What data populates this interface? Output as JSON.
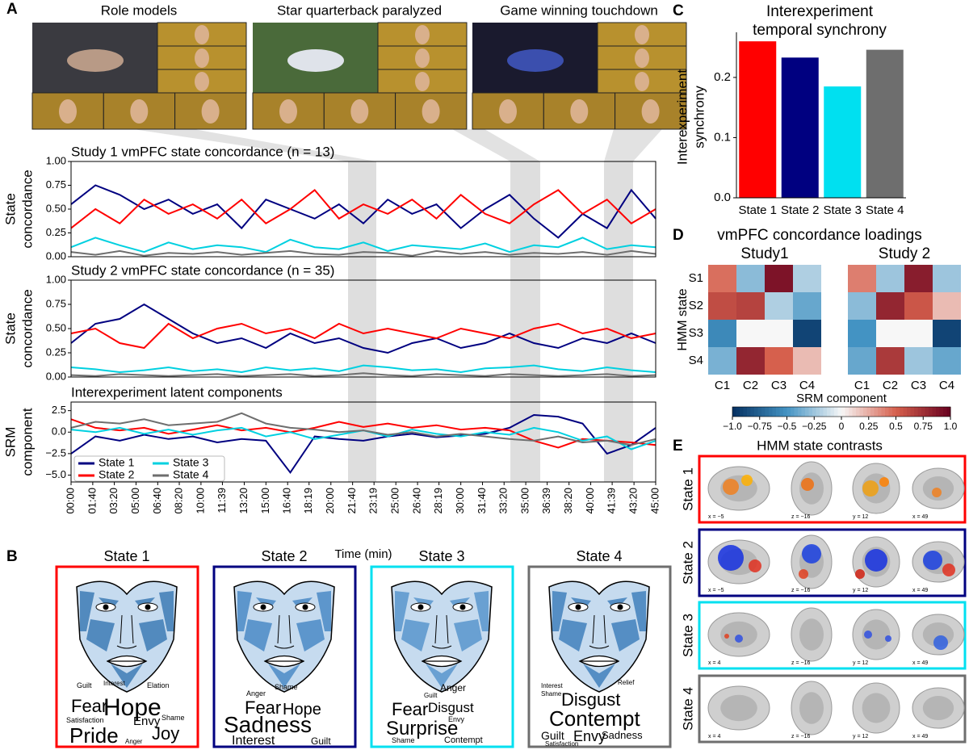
{
  "panel_labels": [
    "A",
    "B",
    "C",
    "D",
    "E"
  ],
  "videos": [
    "Role models",
    "Star quarterback paralyzed",
    "Game winning touchdown"
  ],
  "chart_data": [
    {
      "type": "line",
      "title": "Study 1 vmPFC state concordance (n = 13)",
      "ylabel": [
        "State",
        "concordance"
      ],
      "x": [
        0,
        1.875,
        3.75,
        5.625,
        7.5,
        9.375,
        11.25,
        13.125,
        15,
        16.875,
        18.75,
        20.625,
        22.5,
        24.375,
        26.25,
        28.125,
        30,
        31.875,
        33.75,
        35.625,
        37.5,
        39.375,
        41.25,
        43.125,
        45
      ],
      "xlim": [
        0,
        45
      ],
      "ylim": [
        0,
        1
      ],
      "yticks": [
        {
          "value": 0,
          "label": "0.00"
        },
        {
          "value": 0.25,
          "label": "0.25"
        },
        {
          "value": 0.5,
          "label": "0.50"
        },
        {
          "value": 0.75,
          "label": "0.75"
        },
        {
          "value": 1,
          "label": "1.00"
        }
      ],
      "series": [
        {
          "color": "#000080",
          "values": [
            0.55,
            0.75,
            0.65,
            0.5,
            0.6,
            0.45,
            0.55,
            0.3,
            0.6,
            0.5,
            0.4,
            0.55,
            0.35,
            0.6,
            0.45,
            0.55,
            0.3,
            0.5,
            0.65,
            0.4,
            0.2,
            0.45,
            0.3,
            0.7,
            0.4
          ]
        },
        {
          "color": "#ff0000",
          "values": [
            0.3,
            0.5,
            0.35,
            0.6,
            0.45,
            0.55,
            0.4,
            0.6,
            0.35,
            0.5,
            0.7,
            0.4,
            0.55,
            0.45,
            0.6,
            0.4,
            0.65,
            0.45,
            0.35,
            0.55,
            0.7,
            0.45,
            0.6,
            0.35,
            0.5
          ]
        },
        {
          "color": "#00d0e0",
          "values": [
            0.1,
            0.2,
            0.12,
            0.05,
            0.15,
            0.08,
            0.12,
            0.1,
            0.05,
            0.18,
            0.1,
            0.08,
            0.15,
            0.06,
            0.12,
            0.1,
            0.08,
            0.14,
            0.05,
            0.12,
            0.1,
            0.2,
            0.08,
            0.12,
            0.1
          ]
        },
        {
          "color": "#6e6e6e",
          "values": [
            0.05,
            0.02,
            0.06,
            0.01,
            0.04,
            0.03,
            0.05,
            0.02,
            0.04,
            0.06,
            0.03,
            0.02,
            0.05,
            0.04,
            0.01,
            0.06,
            0.03,
            0.05,
            0.02,
            0.04,
            0.03,
            0.05,
            0.02,
            0.06,
            0.03
          ]
        }
      ]
    },
    {
      "type": "line",
      "title": "Study 2 vmPFC state concordance (n = 35)",
      "ylabel": [
        "State",
        "concordance"
      ],
      "x": [
        0,
        1.875,
        3.75,
        5.625,
        7.5,
        9.375,
        11.25,
        13.125,
        15,
        16.875,
        18.75,
        20.625,
        22.5,
        24.375,
        26.25,
        28.125,
        30,
        31.875,
        33.75,
        35.625,
        37.5,
        39.375,
        41.25,
        43.125,
        45
      ],
      "xlim": [
        0,
        45
      ],
      "ylim": [
        0,
        1
      ],
      "yticks": [
        {
          "value": 0,
          "label": "0.00"
        },
        {
          "value": 0.25,
          "label": "0.25"
        },
        {
          "value": 0.5,
          "label": "0.50"
        },
        {
          "value": 0.75,
          "label": "0.75"
        },
        {
          "value": 1,
          "label": "1.00"
        }
      ],
      "series": [
        {
          "color": "#000080",
          "values": [
            0.35,
            0.55,
            0.6,
            0.75,
            0.6,
            0.45,
            0.35,
            0.4,
            0.3,
            0.45,
            0.35,
            0.4,
            0.3,
            0.25,
            0.35,
            0.4,
            0.3,
            0.35,
            0.45,
            0.35,
            0.3,
            0.4,
            0.35,
            0.45,
            0.35
          ]
        },
        {
          "color": "#ff0000",
          "values": [
            0.45,
            0.5,
            0.35,
            0.3,
            0.55,
            0.4,
            0.5,
            0.55,
            0.45,
            0.5,
            0.4,
            0.55,
            0.45,
            0.5,
            0.45,
            0.4,
            0.5,
            0.45,
            0.4,
            0.5,
            0.55,
            0.45,
            0.5,
            0.4,
            0.45
          ]
        },
        {
          "color": "#00d0e0",
          "values": [
            0.1,
            0.08,
            0.05,
            0.07,
            0.1,
            0.06,
            0.08,
            0.05,
            0.1,
            0.07,
            0.09,
            0.06,
            0.12,
            0.1,
            0.07,
            0.08,
            0.05,
            0.09,
            0.1,
            0.12,
            0.08,
            0.06,
            0.1,
            0.07,
            0.05
          ]
        },
        {
          "color": "#6e6e6e",
          "values": [
            0.02,
            0.01,
            0.03,
            0.02,
            0.01,
            0.02,
            0.03,
            0.01,
            0.02,
            0.03,
            0.01,
            0.02,
            0.04,
            0.02,
            0.01,
            0.03,
            0.02,
            0.01,
            0.03,
            0.02,
            0.01,
            0.02,
            0.03,
            0.01,
            0.02
          ]
        }
      ]
    },
    {
      "type": "line",
      "title": "Interexperiment latent components",
      "ylabel": [
        "SRM",
        "component"
      ],
      "xlabel": "Time (min)",
      "legend": "lower left",
      "x": [
        0,
        1.875,
        3.75,
        5.625,
        7.5,
        9.375,
        11.25,
        13.125,
        15,
        16.875,
        18.75,
        20.625,
        22.5,
        24.375,
        26.25,
        28.125,
        30,
        31.875,
        33.75,
        35.625,
        37.5,
        39.375,
        41.25,
        43.125,
        45
      ],
      "xlim": [
        0,
        45
      ],
      "ylim": [
        -5.8,
        3.5
      ],
      "xticks": [
        {
          "value": 0,
          "label": "00:00"
        },
        {
          "value": 1.67,
          "label": "01:40"
        },
        {
          "value": 3.33,
          "label": "03:20"
        },
        {
          "value": 5,
          "label": "05:00"
        },
        {
          "value": 6.67,
          "label": "06:40"
        },
        {
          "value": 8.33,
          "label": "08:20"
        },
        {
          "value": 10,
          "label": "10:00"
        },
        {
          "value": 11.65,
          "label": "11:39"
        },
        {
          "value": 13.33,
          "label": "13:20"
        },
        {
          "value": 15,
          "label": "15:00"
        },
        {
          "value": 16.67,
          "label": "16:40"
        },
        {
          "value": 18.32,
          "label": "18:19"
        },
        {
          "value": 20,
          "label": "20:00"
        },
        {
          "value": 21.67,
          "label": "21:40"
        },
        {
          "value": 23.32,
          "label": "23:19"
        },
        {
          "value": 25,
          "label": "25:00"
        },
        {
          "value": 26.67,
          "label": "26:40"
        },
        {
          "value": 28.32,
          "label": "28:19"
        },
        {
          "value": 30,
          "label": "30:00"
        },
        {
          "value": 31.67,
          "label": "31:40"
        },
        {
          "value": 33.33,
          "label": "33:20"
        },
        {
          "value": 35,
          "label": "35:00"
        },
        {
          "value": 36.65,
          "label": "36:39"
        },
        {
          "value": 38.33,
          "label": "38:20"
        },
        {
          "value": 40,
          "label": "40:00"
        },
        {
          "value": 41.65,
          "label": "41:39"
        },
        {
          "value": 43.33,
          "label": "43:20"
        },
        {
          "value": 45,
          "label": "45:00"
        }
      ],
      "yticks": [
        {
          "value": -5,
          "label": "−5.0"
        },
        {
          "value": -2.5,
          "label": "−2.5"
        },
        {
          "value": 0,
          "label": "0.0"
        },
        2.5
      ],
      "series": [
        {
          "name": "State 1",
          "color": "#000080",
          "values": [
            -2.5,
            -0.5,
            -1.0,
            -0.3,
            -0.8,
            -0.5,
            -1.2,
            -0.8,
            -1.0,
            -4.7,
            -0.5,
            -0.8,
            -1.0,
            -0.5,
            -0.2,
            -0.6,
            -0.4,
            -0.2,
            0.5,
            2.0,
            1.8,
            1.0,
            -2.5,
            -1.5,
            0.5
          ]
        },
        {
          "name": "State 2",
          "color": "#ff0000",
          "values": [
            1.5,
            0.5,
            0.2,
            0.5,
            -0.2,
            0.3,
            0.8,
            0.2,
            0.5,
            0.0,
            0.5,
            1.2,
            0.6,
            1.0,
            0.5,
            0.8,
            0.3,
            0.5,
            0.2,
            -1.0,
            -1.8,
            -0.8,
            -1.0,
            -1.2,
            -1.5
          ]
        },
        {
          "name": "State 3",
          "color": "#00d0e0",
          "values": [
            0.3,
            0.0,
            0.5,
            -0.2,
            0.3,
            -0.3,
            0.2,
            0.5,
            -0.5,
            0.0,
            -0.8,
            -0.3,
            0.2,
            -0.5,
            0.3,
            -0.2,
            -0.5,
            0.0,
            -0.3,
            0.5,
            0.0,
            -1.0,
            -0.5,
            -2.0,
            -1.0
          ]
        },
        {
          "name": "State 4",
          "color": "#6e6e6e",
          "values": [
            0.5,
            1.2,
            1.0,
            1.5,
            0.8,
            1.0,
            1.2,
            2.2,
            1.0,
            0.5,
            0.3,
            0.0,
            0.2,
            -0.3,
            0.0,
            -0.5,
            -0.2,
            -0.5,
            -0.8,
            -1.0,
            -0.5,
            -1.2,
            -1.0,
            -1.5,
            -0.8
          ]
        }
      ]
    },
    {
      "type": "bar",
      "title": [
        "Interexperiment",
        "temporal synchrony"
      ],
      "ylabel": [
        "Interexperiment",
        "synchrony"
      ],
      "categories": [
        "State 1",
        "State 2",
        "State 3",
        "State 4"
      ],
      "values": [
        0.26,
        0.233,
        0.185,
        0.246
      ],
      "colors": [
        "#ff0000",
        "#000080",
        "#00e0f0",
        "#6e6e6e"
      ],
      "ylim": [
        0,
        0.275
      ],
      "yticks": [
        {
          "value": 0,
          "label": "0.0"
        },
        0.1,
        0.2
      ]
    },
    {
      "type": "heatmap",
      "title": "vmPFC concordance loadings",
      "ylabel": "HMM state",
      "xlabel": "SRM component",
      "rows": [
        "S1",
        "S2",
        "S3",
        "S4"
      ],
      "cols": [
        "C1",
        "C2",
        "C3",
        "C4"
      ],
      "subplots": [
        {
          "title": "Study1",
          "values": [
            [
              0.45,
              -0.3,
              0.9,
              -0.2
            ],
            [
              0.6,
              0.65,
              -0.2,
              -0.4
            ],
            [
              -0.55,
              0.0,
              0.0,
              -0.9
            ],
            [
              -0.35,
              0.8,
              0.5,
              0.2
            ]
          ]
        },
        {
          "title": "Study 2",
          "values": [
            [
              0.4,
              -0.25,
              0.85,
              -0.25
            ],
            [
              -0.3,
              0.8,
              0.55,
              0.2
            ],
            [
              -0.5,
              0.0,
              0.0,
              -0.9
            ],
            [
              -0.4,
              0.7,
              -0.25,
              -0.4
            ]
          ]
        }
      ],
      "clim": [
        -1,
        1
      ],
      "cticks": [
        {
          "value": -1,
          "label": "−1.0"
        },
        {
          "value": -0.75,
          "label": "−0.75"
        },
        {
          "value": -0.5,
          "label": "−0.5"
        },
        {
          "value": -0.25,
          "label": "−0.25"
        },
        0,
        0.25,
        0.5,
        0.75,
        {
          "value": 1,
          "label": "1.0"
        }
      ]
    }
  ],
  "panel_b": [
    {
      "title": "State 1",
      "words": [
        "Guilt",
        "Interest",
        "Elation",
        "Fear",
        "Hope",
        "Satisfaction",
        "Envy",
        "Shame",
        "Pride",
        "Joy",
        "Anger"
      ]
    },
    {
      "title": "State 2",
      "words": [
        "Shame",
        "Anger",
        "Fear",
        "Hope",
        "Sadness",
        "Interest",
        "Guilt"
      ]
    },
    {
      "title": "State 3",
      "words": [
        "Anger",
        "Guilt",
        "Fear",
        "Disgust",
        "Envy",
        "Surprise",
        "Shame",
        "Contempt"
      ]
    },
    {
      "title": "State 4",
      "words": [
        "Interest",
        "Shame",
        "Relief",
        "Disgust",
        "Contempt",
        "Guilt",
        "Envy",
        "Satisfaction",
        "Sadness"
      ]
    }
  ],
  "panel_e": {
    "title": "HMM state contrasts",
    "rows": [
      {
        "label": "State 1",
        "coords": [
          "x = −5",
          "z = −16",
          "y = 12",
          "x = 49"
        ]
      },
      {
        "label": "State 2",
        "coords": [
          "x = −5",
          "z = −16",
          "y = 12",
          "x = 49"
        ]
      },
      {
        "label": "State 3",
        "coords": [
          "x = 4",
          "z = −16",
          "y = 12",
          "x = 49"
        ]
      },
      {
        "label": "State 4",
        "coords": [
          "x = 4",
          "z = −16",
          "y = 12",
          "x = 49"
        ]
      }
    ]
  }
}
